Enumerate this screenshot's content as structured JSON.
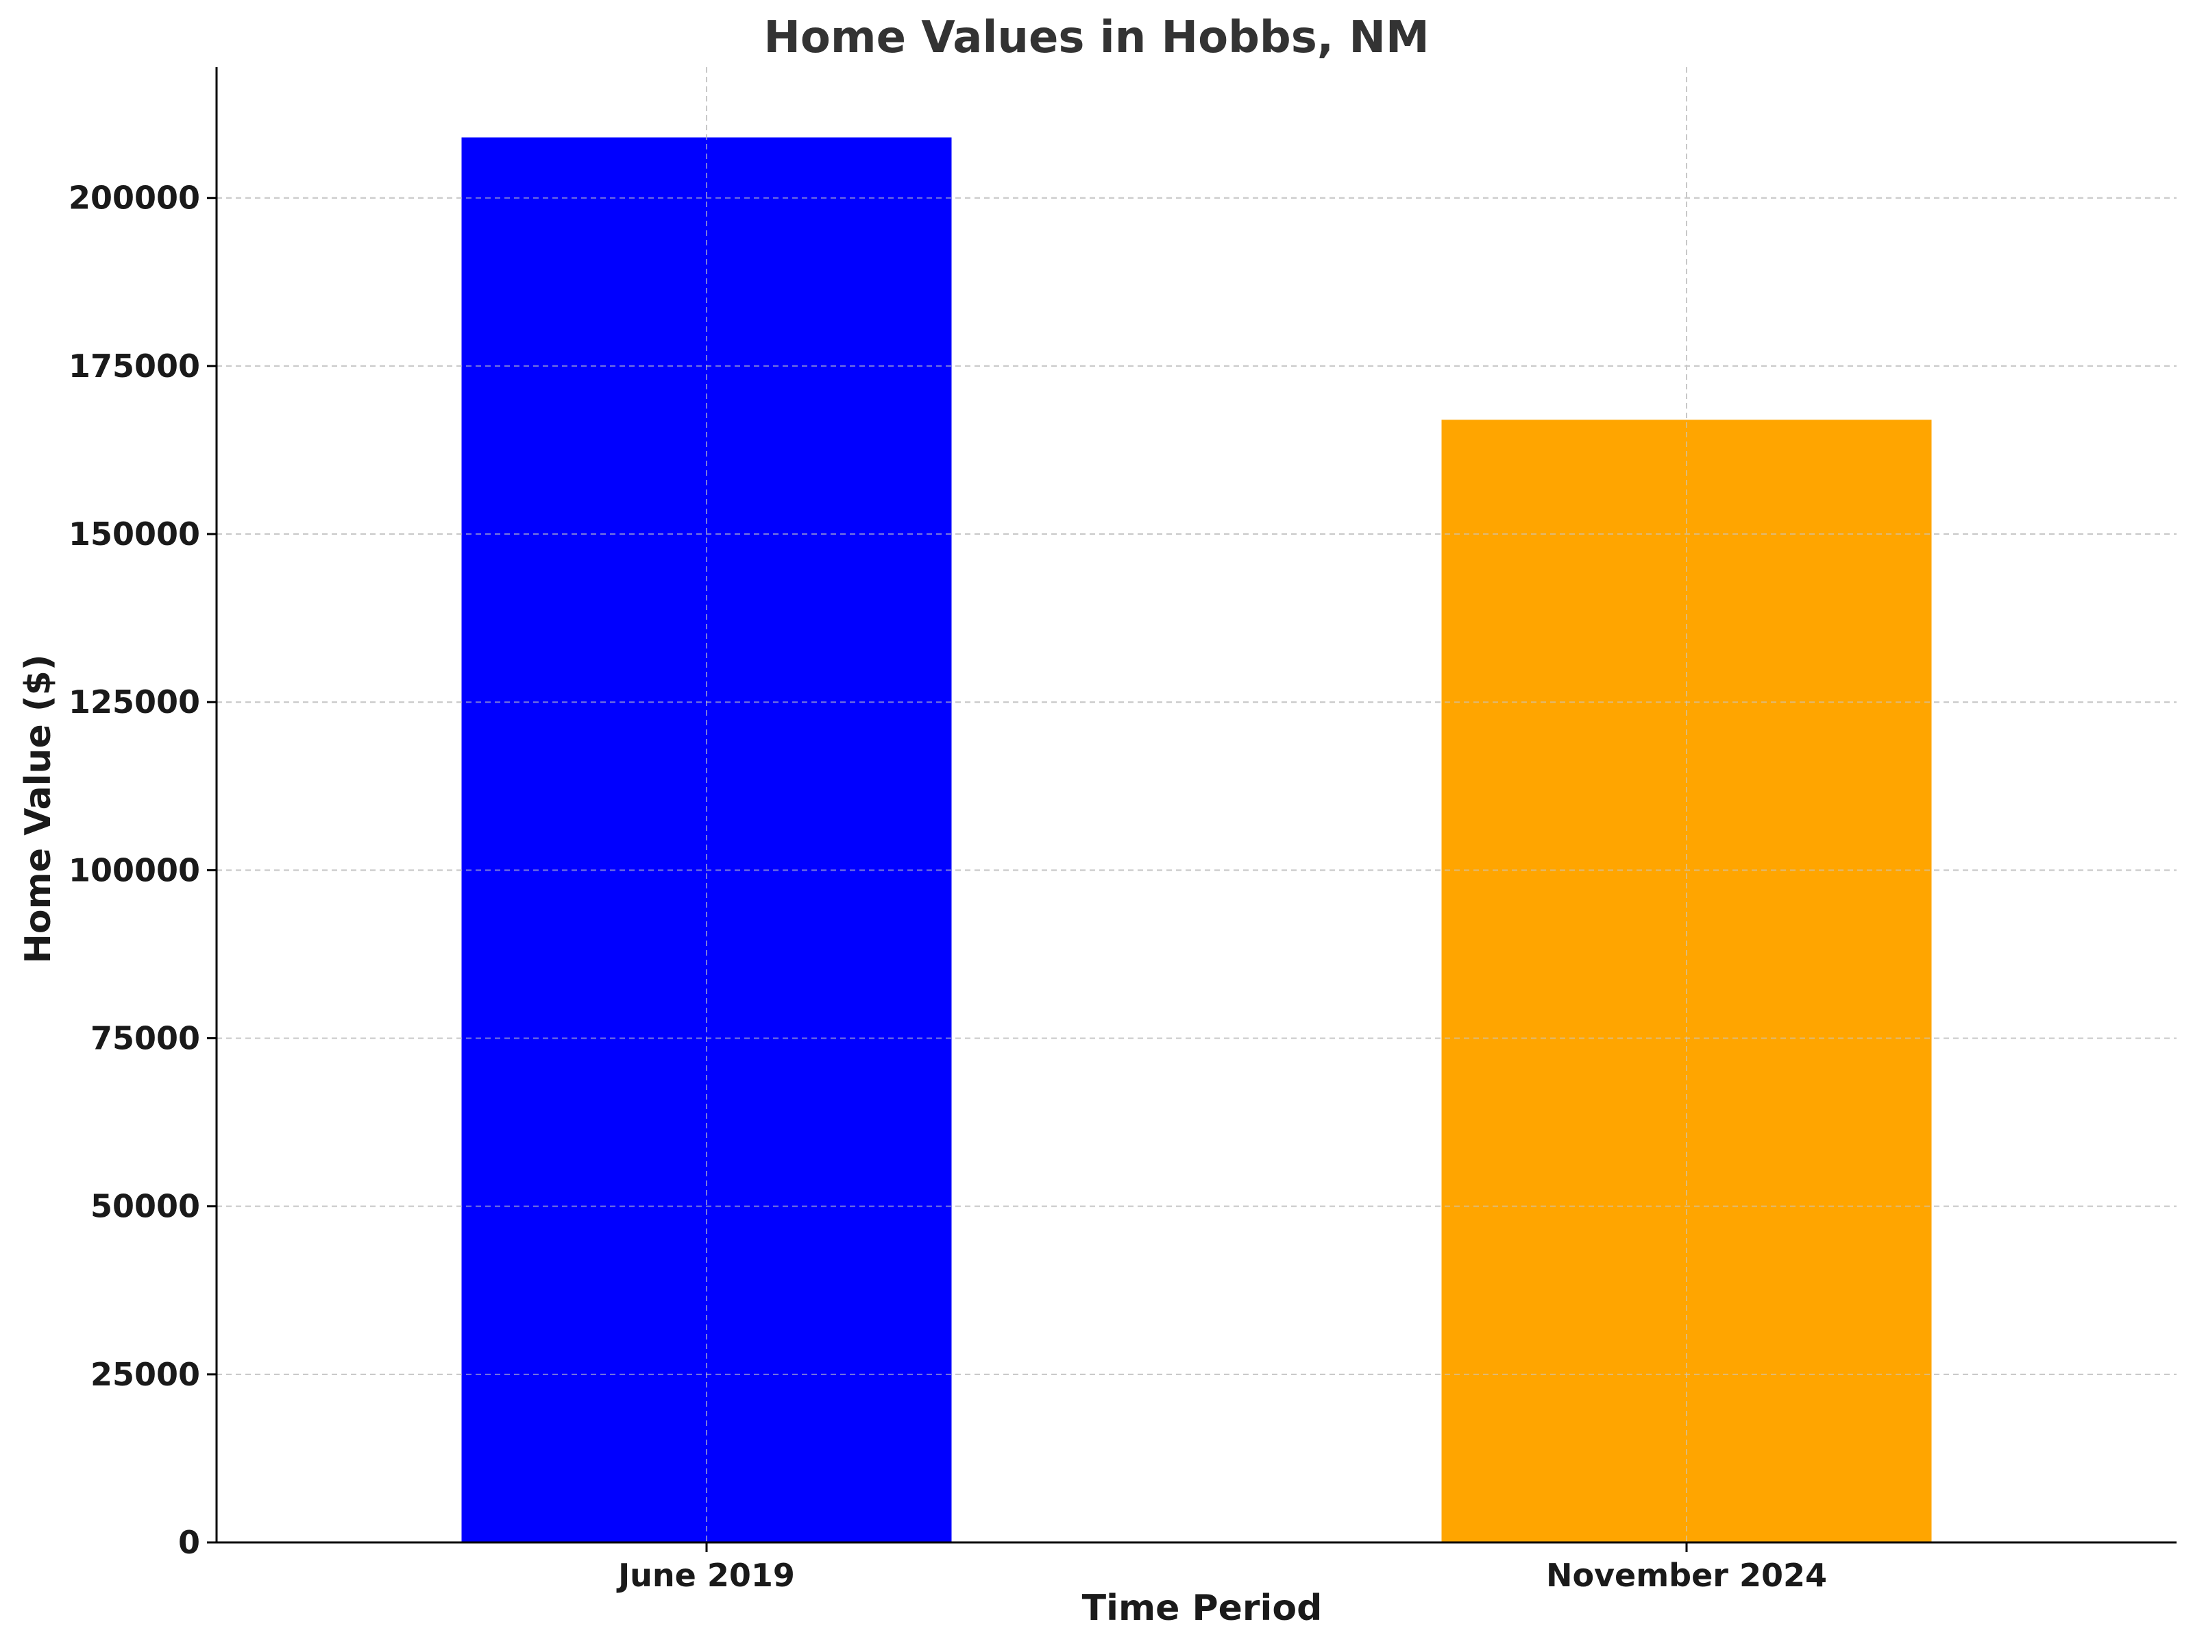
{
  "chart_data": {
    "type": "bar",
    "title": "Home Values in Hobbs, NM",
    "xlabel": "Time Period",
    "ylabel": "Home Value ($)",
    "categories": [
      "June 2019",
      "November 2024"
    ],
    "values": [
      209000,
      167000
    ],
    "colors": [
      "#0000ff",
      "#ffa500"
    ],
    "ylim": [
      0,
      219450
    ],
    "yticks": [
      0,
      25000,
      50000,
      75000,
      100000,
      125000,
      150000,
      175000,
      200000
    ],
    "grid": true
  }
}
